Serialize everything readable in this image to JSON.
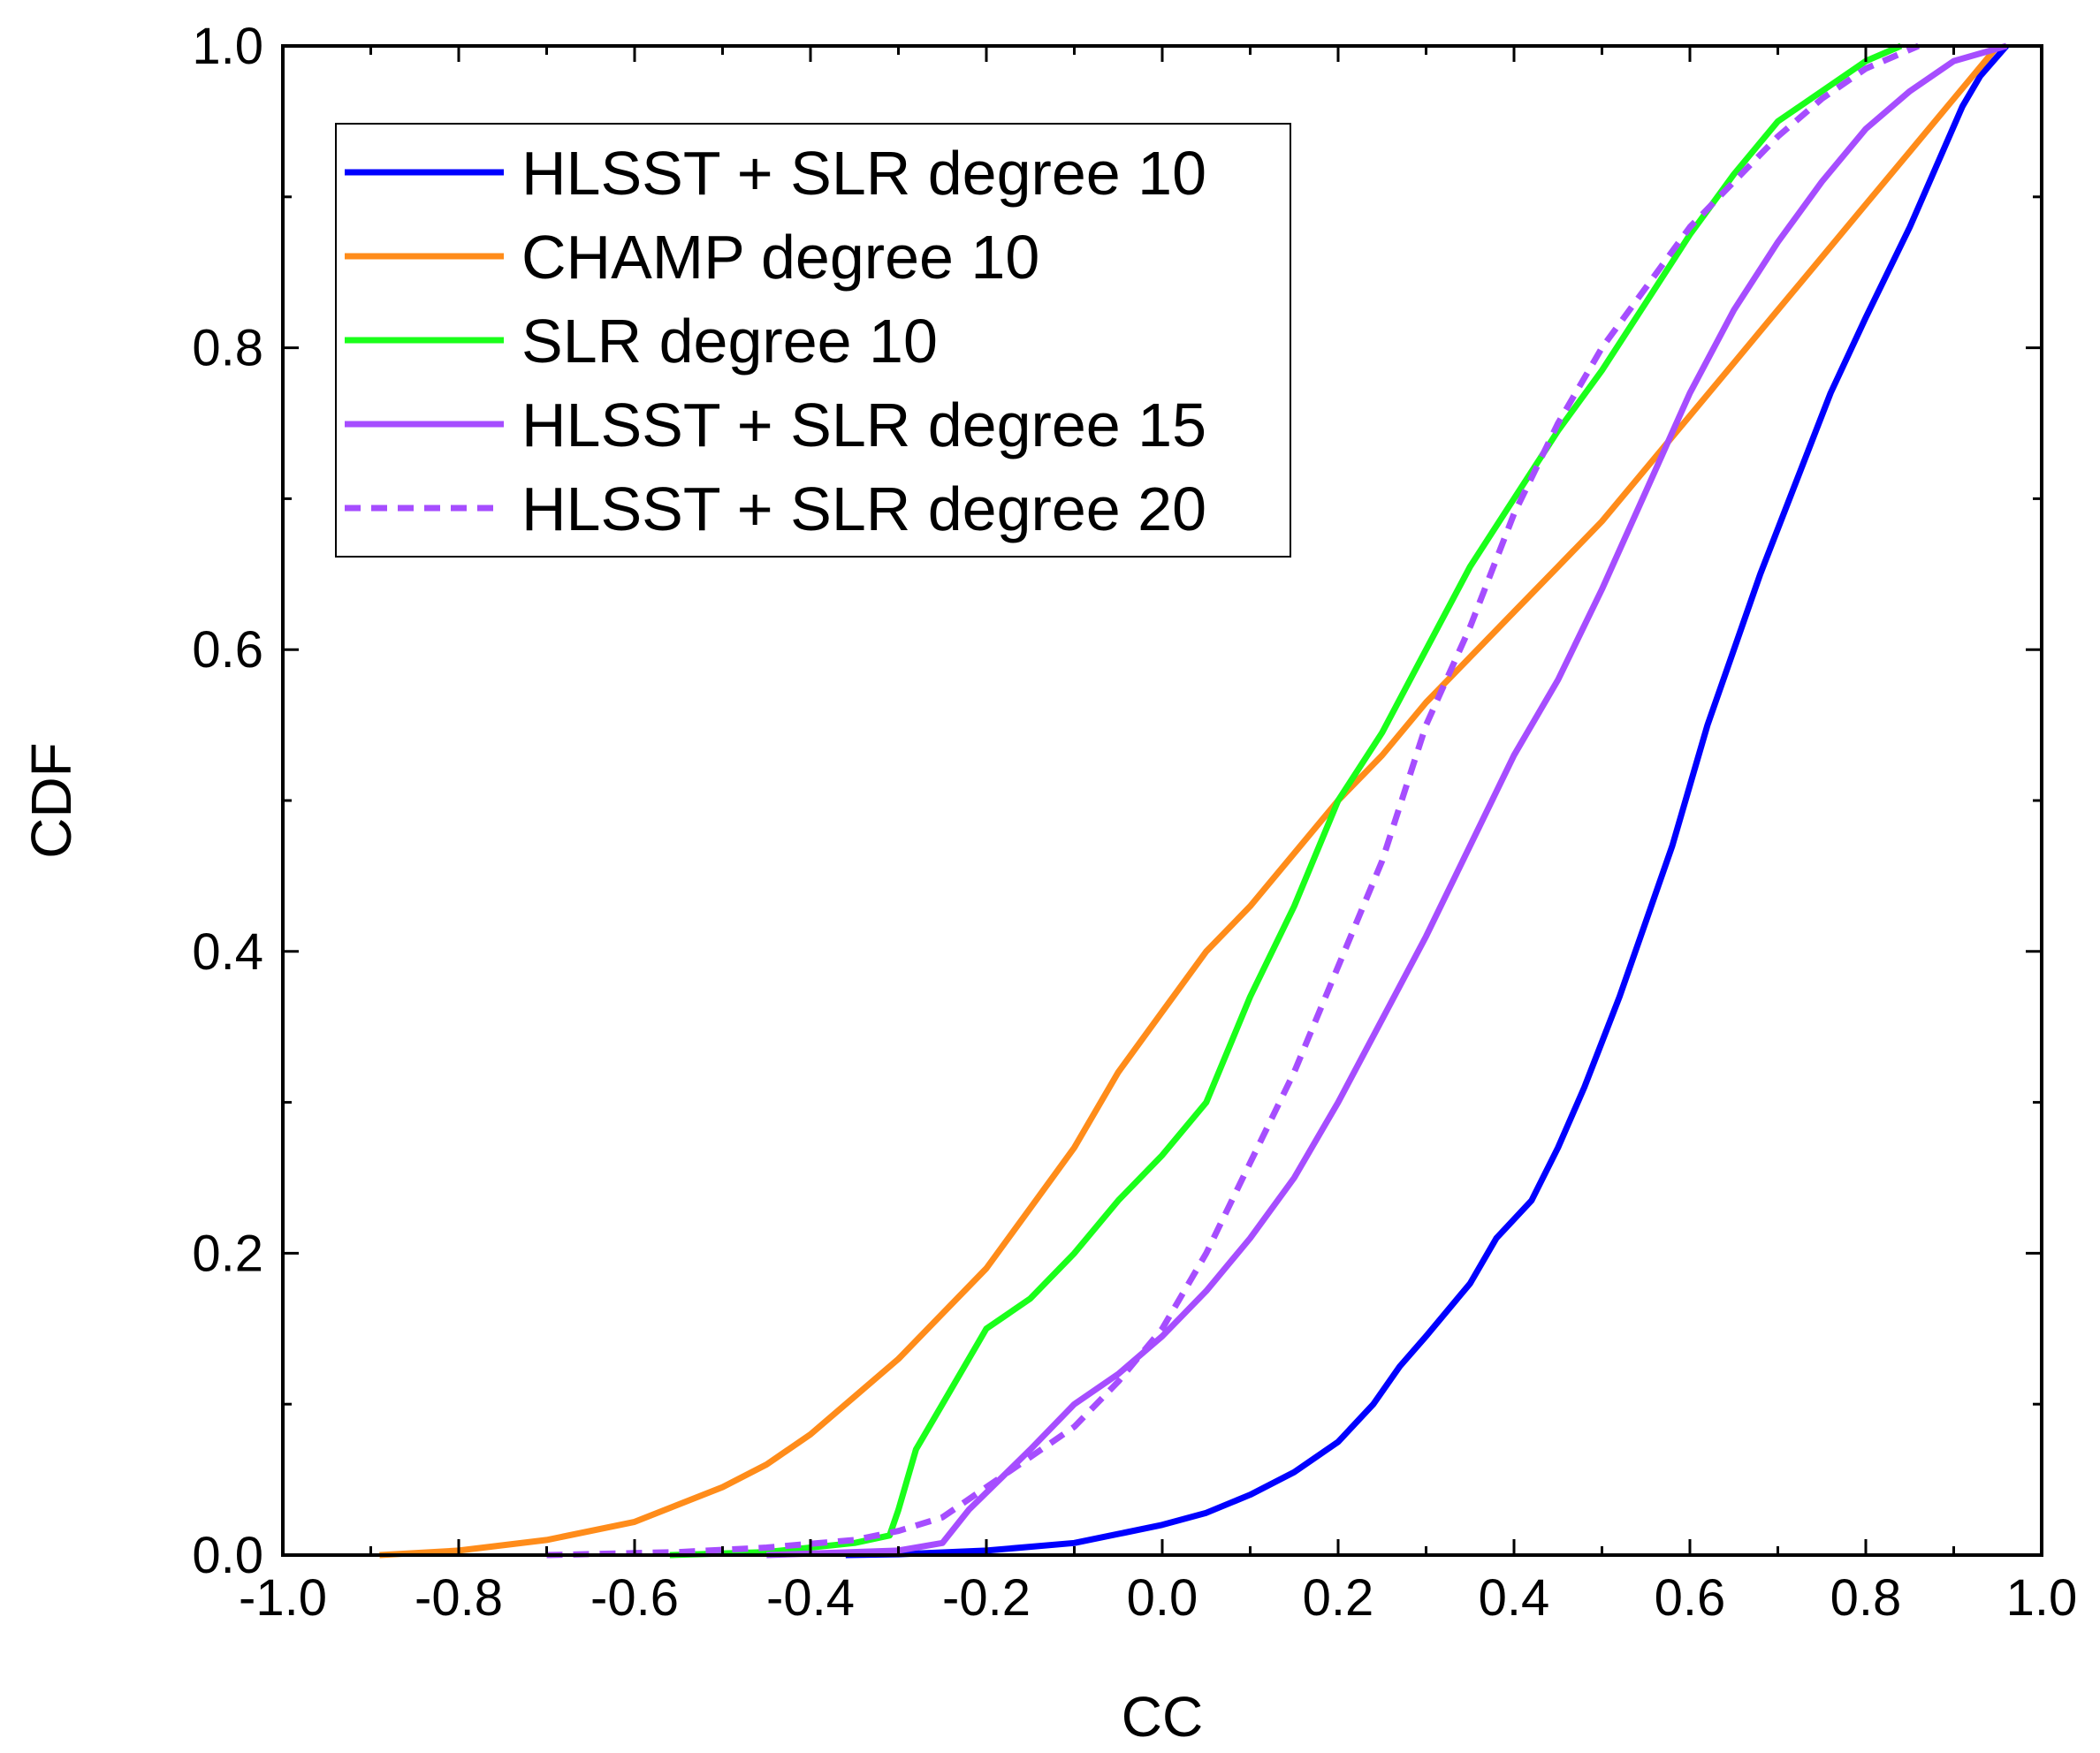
{
  "chart_data": {
    "type": "line",
    "title": "",
    "xlabel": "CC",
    "ylabel": "CDF",
    "xlim": [
      -1.0,
      1.0
    ],
    "ylim": [
      0.0,
      1.0
    ],
    "xticks": [
      "-1.0",
      "-0.8",
      "-0.6",
      "-0.4",
      "-0.2",
      "0.0",
      "0.2",
      "0.4",
      "0.6",
      "0.8",
      "1.0"
    ],
    "yticks": [
      "0.0",
      "0.2",
      "0.4",
      "0.6",
      "0.8",
      "1.0"
    ],
    "grid": false,
    "legend_position": "top-left",
    "series": [
      {
        "name": "HLSST + SLR degree 10",
        "color": "#0000ff",
        "dash": "solid",
        "points": [
          [
            -0.36,
            0
          ],
          [
            -0.3,
            0.0005
          ],
          [
            -0.2,
            0.003
          ],
          [
            -0.1,
            0.008
          ],
          [
            -0.05,
            0.014
          ],
          [
            0.0,
            0.02
          ],
          [
            0.05,
            0.028
          ],
          [
            0.1,
            0.04
          ],
          [
            0.15,
            0.055
          ],
          [
            0.2,
            0.075
          ],
          [
            0.24,
            0.1
          ],
          [
            0.27,
            0.125
          ],
          [
            0.3,
            0.145
          ],
          [
            0.35,
            0.18
          ],
          [
            0.38,
            0.21
          ],
          [
            0.42,
            0.235
          ],
          [
            0.45,
            0.27
          ],
          [
            0.48,
            0.31
          ],
          [
            0.5,
            0.34
          ],
          [
            0.52,
            0.37
          ],
          [
            0.55,
            0.42
          ],
          [
            0.58,
            0.47
          ],
          [
            0.6,
            0.51
          ],
          [
            0.62,
            0.55
          ],
          [
            0.65,
            0.6
          ],
          [
            0.68,
            0.65
          ],
          [
            0.72,
            0.71
          ],
          [
            0.76,
            0.77
          ],
          [
            0.8,
            0.82
          ],
          [
            0.85,
            0.88
          ],
          [
            0.88,
            0.92
          ],
          [
            0.91,
            0.96
          ],
          [
            0.93,
            0.98
          ],
          [
            0.96,
            1.0
          ]
        ]
      },
      {
        "name": "CHAMP degree 10",
        "color": "#ff8c1a",
        "dash": "solid",
        "points": [
          [
            -0.89,
            0
          ],
          [
            -0.8,
            0.003
          ],
          [
            -0.7,
            0.01
          ],
          [
            -0.6,
            0.022
          ],
          [
            -0.5,
            0.045
          ],
          [
            -0.45,
            0.06
          ],
          [
            -0.4,
            0.08
          ],
          [
            -0.35,
            0.105
          ],
          [
            -0.3,
            0.13
          ],
          [
            -0.25,
            0.16
          ],
          [
            -0.2,
            0.19
          ],
          [
            -0.15,
            0.23
          ],
          [
            -0.1,
            0.27
          ],
          [
            -0.05,
            0.32
          ],
          [
            0.0,
            0.36
          ],
          [
            0.05,
            0.4
          ],
          [
            0.1,
            0.43
          ],
          [
            0.15,
            0.465
          ],
          [
            0.2,
            0.5
          ],
          [
            0.25,
            0.53
          ],
          [
            0.3,
            0.565
          ],
          [
            0.35,
            0.595
          ],
          [
            0.4,
            0.625
          ],
          [
            0.45,
            0.655
          ],
          [
            0.5,
            0.685
          ],
          [
            0.55,
            0.72
          ],
          [
            0.6,
            0.755
          ],
          [
            0.65,
            0.79
          ],
          [
            0.7,
            0.825
          ],
          [
            0.75,
            0.86
          ],
          [
            0.8,
            0.895
          ],
          [
            0.85,
            0.93
          ],
          [
            0.9,
            0.965
          ],
          [
            0.95,
            1.0
          ]
        ]
      },
      {
        "name": "SLR degree 10",
        "color": "#1aff1a",
        "dash": "solid",
        "points": [
          [
            -0.56,
            0
          ],
          [
            -0.45,
            0.002
          ],
          [
            -0.35,
            0.008
          ],
          [
            -0.31,
            0.013
          ],
          [
            -0.3,
            0.03
          ],
          [
            -0.28,
            0.07
          ],
          [
            -0.25,
            0.1
          ],
          [
            -0.2,
            0.15
          ],
          [
            -0.15,
            0.17
          ],
          [
            -0.1,
            0.2
          ],
          [
            -0.05,
            0.235
          ],
          [
            0.0,
            0.265
          ],
          [
            0.05,
            0.3
          ],
          [
            0.1,
            0.37
          ],
          [
            0.15,
            0.43
          ],
          [
            0.2,
            0.5
          ],
          [
            0.25,
            0.545
          ],
          [
            0.3,
            0.6
          ],
          [
            0.35,
            0.655
          ],
          [
            0.4,
            0.7
          ],
          [
            0.45,
            0.745
          ],
          [
            0.5,
            0.785
          ],
          [
            0.55,
            0.83
          ],
          [
            0.6,
            0.875
          ],
          [
            0.65,
            0.915
          ],
          [
            0.7,
            0.95
          ],
          [
            0.75,
            0.97
          ],
          [
            0.8,
            0.99
          ],
          [
            0.84,
            1.0
          ]
        ]
      },
      {
        "name": "HLSST + SLR degree 15",
        "color": "#a64dff",
        "dash": "solid",
        "points": [
          [
            -0.45,
            0
          ],
          [
            -0.3,
            0.003
          ],
          [
            -0.25,
            0.008
          ],
          [
            -0.22,
            0.03
          ],
          [
            -0.15,
            0.07
          ],
          [
            -0.1,
            0.1
          ],
          [
            -0.05,
            0.12
          ],
          [
            0.0,
            0.145
          ],
          [
            0.05,
            0.175
          ],
          [
            0.1,
            0.21
          ],
          [
            0.15,
            0.25
          ],
          [
            0.2,
            0.3
          ],
          [
            0.25,
            0.355
          ],
          [
            0.3,
            0.41
          ],
          [
            0.35,
            0.47
          ],
          [
            0.4,
            0.53
          ],
          [
            0.45,
            0.58
          ],
          [
            0.5,
            0.64
          ],
          [
            0.55,
            0.705
          ],
          [
            0.6,
            0.77
          ],
          [
            0.65,
            0.825
          ],
          [
            0.7,
            0.87
          ],
          [
            0.75,
            0.91
          ],
          [
            0.8,
            0.945
          ],
          [
            0.85,
            0.97
          ],
          [
            0.9,
            0.99
          ],
          [
            0.96,
            1.0
          ]
        ]
      },
      {
        "name": "HLSST + SLR degree 20",
        "color": "#a64dff",
        "dash": "dashed",
        "points": [
          [
            -0.7,
            0
          ],
          [
            -0.55,
            0.002
          ],
          [
            -0.45,
            0.005
          ],
          [
            -0.35,
            0.01
          ],
          [
            -0.3,
            0.016
          ],
          [
            -0.25,
            0.025
          ],
          [
            -0.2,
            0.045
          ],
          [
            -0.15,
            0.065
          ],
          [
            -0.1,
            0.085
          ],
          [
            -0.05,
            0.115
          ],
          [
            0.0,
            0.15
          ],
          [
            0.05,
            0.2
          ],
          [
            0.1,
            0.26
          ],
          [
            0.15,
            0.32
          ],
          [
            0.2,
            0.39
          ],
          [
            0.25,
            0.46
          ],
          [
            0.3,
            0.55
          ],
          [
            0.35,
            0.615
          ],
          [
            0.4,
            0.69
          ],
          [
            0.45,
            0.75
          ],
          [
            0.5,
            0.8
          ],
          [
            0.55,
            0.84
          ],
          [
            0.6,
            0.88
          ],
          [
            0.65,
            0.91
          ],
          [
            0.7,
            0.94
          ],
          [
            0.75,
            0.965
          ],
          [
            0.8,
            0.985
          ],
          [
            0.86,
            1.0
          ]
        ]
      }
    ]
  }
}
